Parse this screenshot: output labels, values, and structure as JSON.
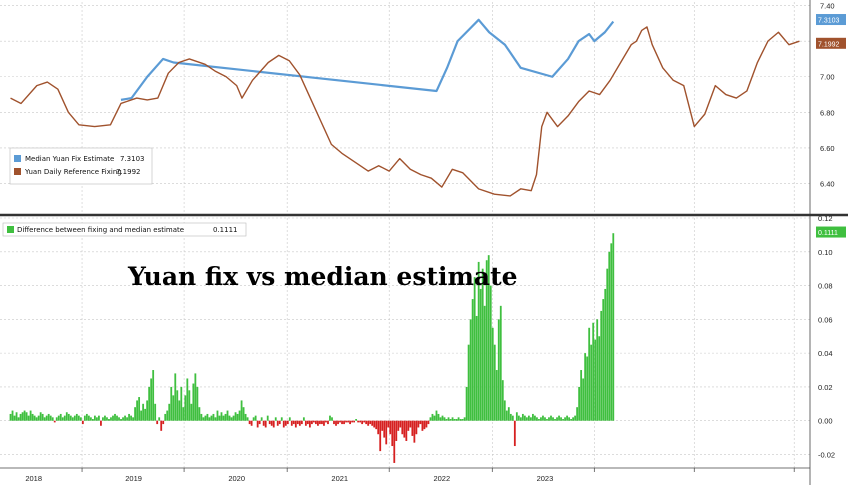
{
  "colors": {
    "fix": "#a0522d",
    "estimate": "#5b9bd5",
    "diff_pos": "#3fbf3f",
    "diff_neg": "#d62020",
    "grid": "#c8c8c8",
    "divider": "#333333"
  },
  "chart_data": [
    {
      "type": "line",
      "x_unit": "year",
      "legend_position": "left",
      "grid": true,
      "ylim": [
        6.24,
        7.42
      ],
      "yticks": [
        "6.40",
        "6.60",
        "6.80",
        "7.00",
        "7.20",
        "7.40"
      ],
      "last_value_tags": [
        "7.3103",
        "7.1992"
      ],
      "series": [
        {
          "name": "Median Yuan Fix Estimate",
          "legend_value": "7.3103",
          "color": "#5b9bd5",
          "points": [
            [
              2019.05,
              6.87
            ],
            [
              2019.15,
              6.88
            ],
            [
              2019.3,
              7.0
            ],
            [
              2019.45,
              7.1
            ],
            [
              2019.55,
              7.08
            ],
            [
              2022.05,
              6.92
            ],
            [
              2022.15,
              7.05
            ],
            [
              2022.25,
              7.2
            ],
            [
              2022.35,
              7.26
            ],
            [
              2022.45,
              7.32
            ],
            [
              2022.55,
              7.25
            ],
            [
              2022.7,
              7.18
            ],
            [
              2022.85,
              7.05
            ],
            [
              2023.15,
              7.0
            ],
            [
              2023.3,
              7.1
            ],
            [
              2023.4,
              7.2
            ],
            [
              2023.5,
              7.24
            ],
            [
              2023.55,
              7.2
            ],
            [
              2023.65,
              7.25
            ],
            [
              2023.73,
              7.31
            ]
          ]
        },
        {
          "name": "Yuan Daily Reference Fixing",
          "legend_value": "7.1992",
          "color": "#a0522d",
          "points": [
            [
              2018.0,
              6.88
            ],
            [
              2018.1,
              6.85
            ],
            [
              2018.25,
              6.95
            ],
            [
              2018.35,
              6.97
            ],
            [
              2018.45,
              6.93
            ],
            [
              2018.55,
              6.8
            ],
            [
              2018.65,
              6.73
            ],
            [
              2018.8,
              6.72
            ],
            [
              2018.95,
              6.73
            ],
            [
              2019.05,
              6.85
            ],
            [
              2019.2,
              6.88
            ],
            [
              2019.3,
              6.87
            ],
            [
              2019.4,
              6.88
            ],
            [
              2019.5,
              7.02
            ],
            [
              2019.6,
              7.08
            ],
            [
              2019.7,
              7.1
            ],
            [
              2019.85,
              7.07
            ],
            [
              2019.95,
              7.03
            ],
            [
              2020.05,
              7.0
            ],
            [
              2020.15,
              6.95
            ],
            [
              2020.2,
              6.88
            ],
            [
              2020.3,
              6.98
            ],
            [
              2020.45,
              7.08
            ],
            [
              2020.55,
              7.12
            ],
            [
              2020.65,
              7.09
            ],
            [
              2020.75,
              7.01
            ],
            [
              2020.85,
              6.88
            ],
            [
              2020.95,
              6.75
            ],
            [
              2021.05,
              6.62
            ],
            [
              2021.15,
              6.57
            ],
            [
              2021.3,
              6.51
            ],
            [
              2021.4,
              6.47
            ],
            [
              2021.5,
              6.5
            ],
            [
              2021.6,
              6.47
            ],
            [
              2021.7,
              6.54
            ],
            [
              2021.8,
              6.48
            ],
            [
              2021.9,
              6.45
            ],
            [
              2022.0,
              6.43
            ],
            [
              2022.1,
              6.38
            ],
            [
              2022.2,
              6.48
            ],
            [
              2022.3,
              6.46
            ],
            [
              2022.45,
              6.37
            ],
            [
              2022.6,
              6.34
            ],
            [
              2022.75,
              6.33
            ],
            [
              2022.85,
              6.37
            ],
            [
              2022.95,
              6.36
            ],
            [
              2023.0,
              6.45
            ],
            [
              2023.05,
              6.72
            ],
            [
              2023.1,
              6.8
            ],
            [
              2023.2,
              6.72
            ],
            [
              2023.3,
              6.78
            ],
            [
              2023.4,
              6.86
            ],
            [
              2023.5,
              6.92
            ],
            [
              2023.6,
              6.9
            ],
            [
              2023.7,
              6.98
            ],
            [
              2023.8,
              7.08
            ],
            [
              2023.9,
              7.18
            ],
            [
              2023.95,
              7.2
            ],
            [
              2024.0,
              7.26
            ],
            [
              2024.05,
              7.28
            ],
            [
              2024.1,
              7.18
            ],
            [
              2024.2,
              7.05
            ],
            [
              2024.3,
              6.98
            ],
            [
              2024.4,
              6.95
            ],
            [
              2024.5,
              6.72
            ],
            [
              2024.6,
              6.79
            ],
            [
              2024.7,
              6.95
            ],
            [
              2024.8,
              6.9
            ],
            [
              2024.9,
              6.88
            ],
            [
              2025.0,
              6.92
            ],
            [
              2025.1,
              7.08
            ],
            [
              2025.2,
              7.2
            ],
            [
              2025.3,
              7.25
            ],
            [
              2025.4,
              7.18
            ],
            [
              2025.5,
              7.2
            ]
          ]
        }
      ]
    },
    {
      "type": "bar",
      "x_unit": "year",
      "legend_position": "top-left",
      "grid": true,
      "ylim": [
        -0.028,
        0.12
      ],
      "yticks": [
        "-0.02",
        "0.00",
        "0.02",
        "0.04",
        "0.06",
        "0.08",
        "0.10",
        "0.12"
      ],
      "last_value_tag": "0.1111",
      "series": [
        {
          "name": "Difference between fixing and median estimate",
          "legend_value": "0.1111",
          "color": "#3fbf3f"
        }
      ],
      "values_start": 2018.0,
      "values_end": 2023.73,
      "values": [
        0.004,
        0.006,
        0.003,
        0.005,
        0.002,
        0.004,
        0.005,
        0.006,
        0.005,
        0.003,
        0.006,
        0.004,
        0.003,
        0.002,
        0.003,
        0.005,
        0.004,
        0.002,
        0.003,
        0.004,
        0.003,
        0.002,
        -0.001,
        0.002,
        0.003,
        0.004,
        0.002,
        0.003,
        0.005,
        0.004,
        0.003,
        0.002,
        0.003,
        0.004,
        0.003,
        0.002,
        -0.002,
        0.003,
        0.004,
        0.003,
        0.002,
        0.001,
        0.003,
        0.002,
        0.003,
        -0.003,
        0.002,
        0.003,
        0.002,
        0.001,
        0.002,
        0.003,
        0.004,
        0.003,
        0.002,
        0.001,
        0.002,
        0.003,
        0.002,
        0.004,
        0.003,
        0.002,
        0.008,
        0.012,
        0.014,
        0.006,
        0.01,
        0.007,
        0.012,
        0.02,
        0.025,
        0.03,
        0.01,
        -0.002,
        0.002,
        -0.006,
        -0.002,
        0.004,
        0.006,
        0.01,
        0.02,
        0.015,
        0.028,
        0.018,
        0.012,
        0.02,
        0.008,
        0.015,
        0.025,
        0.018,
        0.01,
        0.022,
        0.028,
        0.02,
        0.008,
        0.004,
        0.002,
        0.003,
        0.004,
        0.002,
        0.003,
        0.004,
        0.002,
        0.006,
        0.003,
        0.005,
        0.003,
        0.004,
        0.006,
        0.003,
        0.002,
        0.003,
        0.005,
        0.004,
        0.006,
        0.012,
        0.008,
        0.004,
        0.002,
        -0.002,
        -0.003,
        0.002,
        0.003,
        -0.004,
        -0.002,
        0.002,
        -0.003,
        -0.004,
        0.003,
        -0.002,
        -0.003,
        -0.004,
        0.002,
        -0.003,
        -0.002,
        0.002,
        -0.004,
        -0.003,
        -0.002,
        0.002,
        -0.003,
        -0.002,
        -0.004,
        -0.002,
        -0.003,
        -0.002,
        0.002,
        -0.003,
        -0.002,
        -0.004,
        -0.002,
        -0.001,
        -0.002,
        -0.003,
        -0.002,
        -0.002,
        -0.003,
        -0.001,
        -0.002,
        0.003,
        0.002,
        -0.002,
        -0.003,
        -0.002,
        -0.001,
        -0.002,
        -0.002,
        -0.001,
        -0.001,
        -0.002,
        -0.001,
        -0.001,
        0.001,
        -0.001,
        -0.001,
        -0.002,
        -0.001,
        -0.002,
        -0.003,
        -0.002,
        -0.003,
        -0.004,
        -0.005,
        -0.008,
        -0.018,
        -0.006,
        -0.01,
        -0.014,
        -0.004,
        -0.008,
        -0.015,
        -0.025,
        -0.012,
        -0.006,
        -0.004,
        -0.008,
        -0.01,
        -0.012,
        -0.006,
        -0.004,
        -0.009,
        -0.013,
        -0.008,
        -0.004,
        -0.002,
        -0.006,
        -0.005,
        -0.004,
        -0.002,
        0.002,
        0.004,
        0.003,
        0.006,
        0.004,
        0.002,
        0.003,
        0.002,
        0.001,
        0.002,
        0.001,
        0.002,
        0.001,
        0.001,
        0.002,
        0.001,
        0.001,
        0.002,
        0.02,
        0.045,
        0.06,
        0.072,
        0.085,
        0.062,
        0.094,
        0.078,
        0.09,
        0.068,
        0.095,
        0.098,
        0.08,
        0.055,
        0.045,
        0.03,
        0.06,
        0.068,
        0.024,
        0.012,
        0.006,
        0.008,
        0.004,
        0.003,
        -0.015,
        0.005,
        0.003,
        0.002,
        0.004,
        0.003,
        0.002,
        0.003,
        0.002,
        0.004,
        0.003,
        0.002,
        0.001,
        0.002,
        0.003,
        0.002,
        0.001,
        0.002,
        0.003,
        0.002,
        0.001,
        0.002,
        0.003,
        0.002,
        0.001,
        0.002,
        0.003,
        0.002,
        0.001,
        0.002,
        0.003,
        0.008,
        0.02,
        0.03,
        0.025,
        0.04,
        0.038,
        0.055,
        0.045,
        0.058,
        0.048,
        0.06,
        0.05,
        0.065,
        0.072,
        0.078,
        0.09,
        0.1,
        0.105,
        0.111
      ]
    }
  ],
  "x_ticks": [
    "2018",
    "2019",
    "2020",
    "2021",
    "2022",
    "2023"
  ],
  "headline": "Yuan fix vs median estimate"
}
